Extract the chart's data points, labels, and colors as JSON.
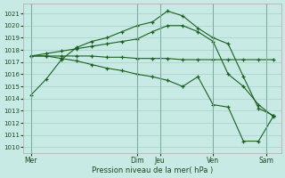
{
  "bg_color": "#c8eae4",
  "grid_color": "#a8cfc8",
  "line_color": "#1a6020",
  "xlabel": "Pression niveau de la mer( hPa )",
  "ylim": [
    1009.5,
    1021.8
  ],
  "yticks": [
    1010,
    1011,
    1012,
    1013,
    1014,
    1015,
    1016,
    1017,
    1018,
    1019,
    1020,
    1021
  ],
  "day_labels": [
    "Mer",
    "Dim",
    "Jeu",
    "Ven",
    "Sam"
  ],
  "day_x": [
    0,
    7,
    8.5,
    12,
    15.5
  ],
  "xlim": [
    -0.5,
    16.5
  ],
  "lines": [
    {
      "x": [
        0,
        1,
        2,
        3,
        4,
        5,
        6,
        7,
        8,
        9,
        10,
        11,
        12,
        13,
        14,
        15,
        16
      ],
      "y": [
        1014.3,
        1015.6,
        1017.2,
        1018.2,
        1018.7,
        1019.0,
        1019.5,
        1020.0,
        1020.3,
        1021.2,
        1020.8,
        1019.8,
        1019.0,
        1018.5,
        1015.8,
        1013.2,
        1012.6
      ]
    },
    {
      "x": [
        0,
        1,
        2,
        3,
        4,
        5,
        6,
        7,
        8,
        9,
        10,
        11,
        12,
        13,
        14,
        15,
        16
      ],
      "y": [
        1017.5,
        1017.7,
        1017.9,
        1018.1,
        1018.3,
        1018.5,
        1018.7,
        1018.9,
        1019.5,
        1020.0,
        1020.0,
        1019.5,
        1018.7,
        1016.0,
        1015.0,
        1013.5,
        1012.5
      ]
    },
    {
      "x": [
        0,
        1,
        2,
        3,
        4,
        5,
        6,
        7,
        8,
        9,
        10,
        11,
        12,
        13,
        14,
        15,
        16
      ],
      "y": [
        1017.5,
        1017.5,
        1017.5,
        1017.5,
        1017.5,
        1017.4,
        1017.4,
        1017.3,
        1017.3,
        1017.3,
        1017.2,
        1017.2,
        1017.2,
        1017.2,
        1017.2,
        1017.2,
        1017.2
      ]
    },
    {
      "x": [
        0,
        1,
        2,
        3,
        4,
        5,
        6,
        7,
        8,
        9,
        10,
        11,
        12,
        13,
        14,
        15,
        16
      ],
      "y": [
        1017.5,
        1017.5,
        1017.3,
        1017.1,
        1016.8,
        1016.5,
        1016.3,
        1016.0,
        1015.8,
        1015.5,
        1015.0,
        1015.8,
        1013.5,
        1013.3,
        1010.5,
        1010.5,
        1012.6
      ]
    }
  ]
}
